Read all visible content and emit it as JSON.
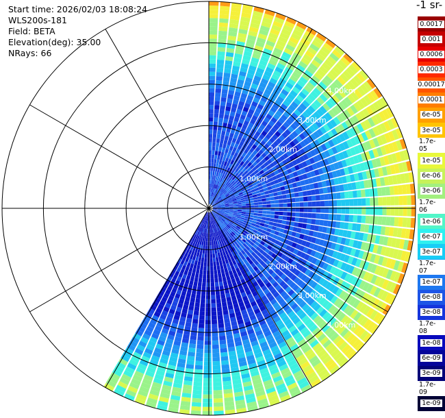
{
  "info": {
    "start_time": "Start time: 2026/02/03 18:08:24",
    "instrument": "WLS200s-181",
    "field": "Field: BETA",
    "elevation": "Elevation(deg): 35.00",
    "nrays": "NRays: 66"
  },
  "colorbar": {
    "unit": "-1 sr-",
    "labels": [
      "0.0017",
      "0.001",
      "0.0006",
      "0.0003",
      "0.00017",
      "0.0001",
      "6e-05",
      "3e-05",
      "1.7e-05",
      "1e-05",
      "6e-06",
      "3e-06",
      "1.7e-06",
      "1e-06",
      "6e-07",
      "3e-07",
      "1.7e-07",
      "1e-07",
      "6e-08",
      "3e-08",
      "1.7e-08",
      "1e-08",
      "6e-09",
      "3e-09",
      "1.7e-09",
      "1e-09"
    ],
    "colors": [
      "#9a0000",
      "#c50000",
      "#e60000",
      "#ff2a00",
      "#ff5500",
      "#ff7d00",
      "#ffa000",
      "#ffc400",
      "#fff000",
      "#e8f83a",
      "#c7f25a",
      "#a2f07f",
      "#7cf3a0",
      "#52f5c8",
      "#2ff0f0",
      "#19cdf5",
      "#14a4f5",
      "#1e78f0",
      "#1d55e6",
      "#1535dc",
      "#0d18d2",
      "#0709bc",
      "#04049a",
      "#020278",
      "#010158",
      "#000036"
    ]
  },
  "chart_data": {
    "type": "heatmap",
    "projection": "polar-ppi",
    "field": "BETA",
    "elevation_deg": 35.0,
    "n_rays": 66,
    "azimuth_range_deg": [
      0,
      211
    ],
    "max_range_km": 5.0,
    "range_ring_labels": [
      "1.00km",
      "2.00km",
      "3.00km",
      "4.00km"
    ],
    "spoke_step_deg": 30,
    "level_colors": [
      "#0b16c8",
      "#1a45e4",
      "#1d6ef2",
      "#2096f4",
      "#20c8f2",
      "#3ff2e0",
      "#9af38a",
      "#d9f850",
      "#f5f03a",
      "#ff9c18"
    ]
  }
}
